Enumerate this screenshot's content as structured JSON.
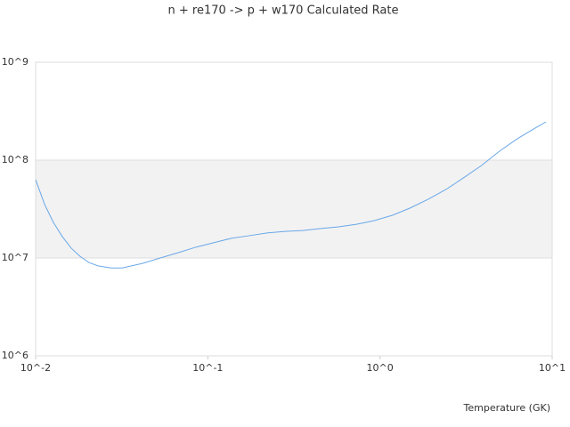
{
  "chart_data": {
    "type": "line",
    "title": "n + re170 -> p + w170 Calculated Rate",
    "x_label": "Temperature (GK)",
    "log_x": true,
    "log_y": true,
    "grid": true,
    "xlim": [
      0.01,
      10
    ],
    "ylim": [
      1000000,
      1000000000
    ],
    "xticks": [
      {
        "value": 0.01,
        "label": "10^-2"
      },
      {
        "value": 0.1,
        "label": "10^-1"
      },
      {
        "value": 1,
        "label": "10^0"
      },
      {
        "value": 10,
        "label": "10^1"
      }
    ],
    "yticks": [
      {
        "value": 1000000,
        "label": "10^6"
      },
      {
        "value": 10000000,
        "label": "10^7"
      },
      {
        "value": 100000000,
        "label": "10^8"
      },
      {
        "value": 1000000000,
        "label": "10^9"
      }
    ],
    "x": [
      0.01,
      0.0113,
      0.0127,
      0.0143,
      0.0161,
      0.0181,
      0.0204,
      0.023,
      0.0275,
      0.0317,
      0.0417,
      0.0529,
      0.0671,
      0.0853,
      0.108,
      0.137,
      0.174,
      0.221,
      0.28,
      0.357,
      0.453,
      0.575,
      0.73,
      0.927,
      1.18,
      1.49,
      1.9,
      2.41,
      3.06,
      3.88,
      4.93,
      6.26,
      7.95,
      9.2
    ],
    "series": [
      {
        "color": "#6aa8e8",
        "values": [
          63000000,
          35000000,
          23000000,
          16500000,
          12600000,
          10400000,
          9000000,
          8300000,
          7900000,
          7900000,
          8800000,
          10000000,
          11300000,
          12900000,
          14300000,
          15900000,
          16900000,
          18000000,
          18700000,
          19100000,
          20000000,
          20800000,
          22100000,
          24100000,
          27300000,
          32300000,
          39800000,
          50000000,
          66000000,
          88000000,
          123000000,
          165000000,
          212000000,
          246000000
        ]
      }
    ]
  }
}
